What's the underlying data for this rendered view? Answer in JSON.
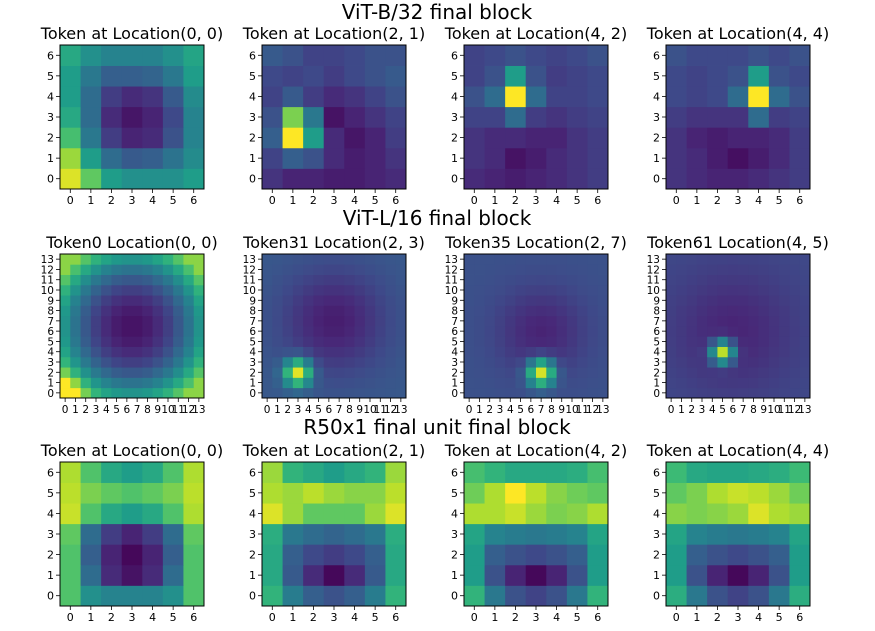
{
  "figure": {
    "rows": [
      {
        "title": "ViT-B/32 final block"
      },
      {
        "title": "ViT-L/16 final block"
      },
      {
        "title": "R50x1 final unit final block"
      }
    ]
  },
  "chart_data": [
    {
      "type": "heatmap",
      "row": 0,
      "col": 0,
      "size": 7,
      "title": "Token at Location(0, 0)",
      "x_ticks": [
        "0",
        "1",
        "2",
        "3",
        "4",
        "5",
        "6"
      ],
      "y_ticks": [
        "0",
        "1",
        "2",
        "3",
        "4",
        "5",
        "6"
      ],
      "cmap": "viridis",
      "value_range": [
        0,
        1
      ],
      "values": [
        [
          0.95,
          0.75,
          0.55,
          0.5,
          0.5,
          0.5,
          0.55
        ],
        [
          0.85,
          0.55,
          0.35,
          0.28,
          0.3,
          0.38,
          0.48
        ],
        [
          0.7,
          0.4,
          0.18,
          0.1,
          0.12,
          0.25,
          0.45
        ],
        [
          0.6,
          0.35,
          0.12,
          0.06,
          0.1,
          0.22,
          0.45
        ],
        [
          0.55,
          0.35,
          0.18,
          0.12,
          0.15,
          0.28,
          0.48
        ],
        [
          0.55,
          0.4,
          0.3,
          0.3,
          0.32,
          0.4,
          0.55
        ],
        [
          0.6,
          0.5,
          0.45,
          0.45,
          0.45,
          0.5,
          0.58
        ]
      ]
    },
    {
      "type": "heatmap",
      "row": 0,
      "col": 1,
      "size": 7,
      "title": "Token at Location(2, 1)",
      "x_ticks": [
        "0",
        "1",
        "2",
        "3",
        "4",
        "5",
        "6"
      ],
      "y_ticks": [
        "0",
        "1",
        "2",
        "3",
        "4",
        "5",
        "6"
      ],
      "cmap": "viridis",
      "value_range": [
        0,
        1
      ],
      "values": [
        [
          0.15,
          0.1,
          0.1,
          0.08,
          0.08,
          0.1,
          0.12
        ],
        [
          0.2,
          0.3,
          0.25,
          0.12,
          0.08,
          0.1,
          0.15
        ],
        [
          0.3,
          1.0,
          0.55,
          0.12,
          0.06,
          0.1,
          0.18
        ],
        [
          0.25,
          0.8,
          0.4,
          0.05,
          0.1,
          0.15,
          0.2
        ],
        [
          0.2,
          0.28,
          0.18,
          0.12,
          0.15,
          0.2,
          0.25
        ],
        [
          0.22,
          0.2,
          0.22,
          0.18,
          0.22,
          0.25,
          0.28
        ],
        [
          0.28,
          0.25,
          0.2,
          0.2,
          0.22,
          0.25,
          0.25
        ]
      ]
    },
    {
      "type": "heatmap",
      "row": 0,
      "col": 2,
      "size": 7,
      "title": "Token at Location(4, 2)",
      "x_ticks": [
        "0",
        "1",
        "2",
        "3",
        "4",
        "5",
        "6"
      ],
      "y_ticks": [
        "0",
        "1",
        "2",
        "3",
        "4",
        "5",
        "6"
      ],
      "cmap": "viridis",
      "value_range": [
        0,
        1
      ],
      "values": [
        [
          0.12,
          0.1,
          0.08,
          0.1,
          0.12,
          0.15,
          0.18
        ],
        [
          0.15,
          0.12,
          0.05,
          0.08,
          0.12,
          0.15,
          0.18
        ],
        [
          0.15,
          0.12,
          0.12,
          0.1,
          0.1,
          0.15,
          0.18
        ],
        [
          0.2,
          0.2,
          0.35,
          0.18,
          0.15,
          0.18,
          0.2
        ],
        [
          0.25,
          0.35,
          1.0,
          0.35,
          0.2,
          0.2,
          0.22
        ],
        [
          0.2,
          0.25,
          0.55,
          0.25,
          0.18,
          0.2,
          0.22
        ],
        [
          0.2,
          0.22,
          0.25,
          0.22,
          0.2,
          0.22,
          0.25
        ]
      ]
    },
    {
      "type": "heatmap",
      "row": 0,
      "col": 3,
      "size": 7,
      "title": "Token at Location(4, 4)",
      "x_ticks": [
        "0",
        "1",
        "2",
        "3",
        "4",
        "5",
        "6"
      ],
      "y_ticks": [
        "0",
        "1",
        "2",
        "3",
        "4",
        "5",
        "6"
      ],
      "cmap": "viridis",
      "value_range": [
        0,
        1
      ],
      "values": [
        [
          0.15,
          0.12,
          0.1,
          0.1,
          0.12,
          0.15,
          0.18
        ],
        [
          0.15,
          0.12,
          0.08,
          0.04,
          0.08,
          0.12,
          0.18
        ],
        [
          0.15,
          0.1,
          0.08,
          0.1,
          0.1,
          0.12,
          0.18
        ],
        [
          0.18,
          0.15,
          0.15,
          0.15,
          0.35,
          0.18,
          0.2
        ],
        [
          0.22,
          0.2,
          0.22,
          0.35,
          1.0,
          0.35,
          0.25
        ],
        [
          0.22,
          0.2,
          0.22,
          0.25,
          0.55,
          0.25,
          0.22
        ],
        [
          0.25,
          0.22,
          0.22,
          0.22,
          0.25,
          0.22,
          0.25
        ]
      ]
    },
    {
      "type": "heatmap",
      "row": 1,
      "col": 0,
      "size": 14,
      "title": "Token0 Location(0, 0)",
      "x_ticks": [
        "0",
        "1",
        "2",
        "3",
        "4",
        "5",
        "6",
        "7",
        "8",
        "9",
        "10",
        "11",
        "12",
        "13"
      ],
      "y_ticks": [
        "0",
        "1",
        "2",
        "3",
        "4",
        "5",
        "6",
        "7",
        "8",
        "9",
        "10",
        "11",
        "12",
        "13"
      ],
      "cmap": "viridis",
      "value_range": [
        0,
        1
      ],
      "generator": {
        "kind": "bowl",
        "center": [
          6.5,
          6.5
        ],
        "scale": 6.5,
        "peak": [
          0,
          0
        ],
        "peak_amplitude": 0.25,
        "peak_width": 1.2
      }
    },
    {
      "type": "heatmap",
      "row": 1,
      "col": 1,
      "size": 14,
      "title": "Token31 Location(2, 3)",
      "x_ticks": [
        "0",
        "1",
        "2",
        "3",
        "4",
        "5",
        "6",
        "7",
        "8",
        "9",
        "10",
        "11",
        "12",
        "13"
      ],
      "y_ticks": [
        "0",
        "1",
        "2",
        "3",
        "4",
        "5",
        "6",
        "7",
        "8",
        "9",
        "10",
        "11",
        "12",
        "13"
      ],
      "cmap": "viridis",
      "value_range": [
        0,
        1
      ],
      "generator": {
        "kind": "blob",
        "peak": [
          3,
          2
        ],
        "peak_width": 1.3,
        "background": 0.28,
        "dark_center": [
          6.5,
          7
        ],
        "dark_radius": 3.5,
        "dark_depth": 0.2
      }
    },
    {
      "type": "heatmap",
      "row": 1,
      "col": 2,
      "size": 14,
      "title": "Token35 Location(2, 7)",
      "x_ticks": [
        "0",
        "1",
        "2",
        "3",
        "4",
        "5",
        "6",
        "7",
        "8",
        "9",
        "10",
        "11",
        "12",
        "13"
      ],
      "y_ticks": [
        "0",
        "1",
        "2",
        "3",
        "4",
        "5",
        "6",
        "7",
        "8",
        "9",
        "10",
        "11",
        "12",
        "13"
      ],
      "cmap": "viridis",
      "value_range": [
        0,
        1
      ],
      "generator": {
        "kind": "blob",
        "peak": [
          7,
          2
        ],
        "peak_width": 1.3,
        "background": 0.25,
        "dark_center": [
          7,
          6
        ],
        "dark_radius": 3,
        "dark_depth": 0.15
      }
    },
    {
      "type": "heatmap",
      "row": 1,
      "col": 3,
      "size": 14,
      "title": "Token61 Location(4, 5)",
      "x_ticks": [
        "0",
        "1",
        "2",
        "3",
        "4",
        "5",
        "6",
        "7",
        "8",
        "9",
        "10",
        "11",
        "12",
        "13"
      ],
      "y_ticks": [
        "0",
        "1",
        "2",
        "3",
        "4",
        "5",
        "6",
        "7",
        "8",
        "9",
        "10",
        "11",
        "12",
        "13"
      ],
      "cmap": "viridis",
      "value_range": [
        0,
        1
      ],
      "generator": {
        "kind": "blob",
        "peak": [
          5,
          4
        ],
        "peak_width": 1.1,
        "background": 0.22,
        "dark_center": [
          6,
          6
        ],
        "dark_radius": 4,
        "dark_depth": 0.12
      }
    },
    {
      "type": "heatmap",
      "row": 2,
      "col": 0,
      "size": 7,
      "title": "Token at Location(0, 0)",
      "x_ticks": [
        "0",
        "1",
        "2",
        "3",
        "4",
        "5",
        "6"
      ],
      "y_ticks": [
        "0",
        "1",
        "2",
        "3",
        "4",
        "5",
        "6"
      ],
      "cmap": "viridis",
      "value_range": [
        0,
        1
      ],
      "values": [
        [
          0.72,
          0.5,
          0.45,
          0.45,
          0.45,
          0.5,
          0.72
        ],
        [
          0.72,
          0.35,
          0.12,
          0.05,
          0.12,
          0.35,
          0.72
        ],
        [
          0.72,
          0.3,
          0.1,
          0.02,
          0.1,
          0.3,
          0.72
        ],
        [
          0.75,
          0.35,
          0.18,
          0.1,
          0.18,
          0.35,
          0.75
        ],
        [
          0.92,
          0.72,
          0.6,
          0.55,
          0.6,
          0.72,
          0.88
        ],
        [
          0.9,
          0.8,
          0.75,
          0.72,
          0.75,
          0.8,
          0.9
        ],
        [
          0.88,
          0.72,
          0.6,
          0.55,
          0.6,
          0.72,
          0.88
        ]
      ]
    },
    {
      "type": "heatmap",
      "row": 2,
      "col": 1,
      "size": 7,
      "title": "Token at Location(2, 1)",
      "x_ticks": [
        "0",
        "1",
        "2",
        "3",
        "4",
        "5",
        "6"
      ],
      "y_ticks": [
        "0",
        "1",
        "2",
        "3",
        "4",
        "5",
        "6"
      ],
      "cmap": "viridis",
      "value_range": [
        0,
        1
      ],
      "values": [
        [
          0.65,
          0.42,
          0.3,
          0.25,
          0.3,
          0.42,
          0.65
        ],
        [
          0.6,
          0.28,
          0.12,
          0.02,
          0.12,
          0.28,
          0.6
        ],
        [
          0.6,
          0.3,
          0.22,
          0.18,
          0.22,
          0.3,
          0.6
        ],
        [
          0.62,
          0.4,
          0.35,
          0.32,
          0.35,
          0.4,
          0.62
        ],
        [
          0.95,
          0.85,
          0.75,
          0.75,
          0.75,
          0.85,
          0.95
        ],
        [
          0.88,
          0.85,
          0.9,
          0.85,
          0.82,
          0.82,
          0.9
        ],
        [
          0.85,
          0.65,
          0.6,
          0.55,
          0.6,
          0.65,
          0.85
        ]
      ]
    },
    {
      "type": "heatmap",
      "row": 2,
      "col": 2,
      "size": 7,
      "title": "Token at Location(4, 2)",
      "x_ticks": [
        "0",
        "1",
        "2",
        "3",
        "4",
        "5",
        "6"
      ],
      "y_ticks": [
        "0",
        "1",
        "2",
        "3",
        "4",
        "5",
        "6"
      ],
      "cmap": "viridis",
      "value_range": [
        0,
        1
      ],
      "values": [
        [
          0.65,
          0.4,
          0.25,
          0.2,
          0.25,
          0.4,
          0.65
        ],
        [
          0.55,
          0.25,
          0.1,
          0.02,
          0.1,
          0.25,
          0.55
        ],
        [
          0.55,
          0.3,
          0.25,
          0.22,
          0.25,
          0.3,
          0.55
        ],
        [
          0.58,
          0.45,
          0.42,
          0.4,
          0.42,
          0.45,
          0.58
        ],
        [
          0.88,
          0.88,
          0.92,
          0.85,
          0.8,
          0.82,
          0.88
        ],
        [
          0.78,
          0.88,
          1.0,
          0.9,
          0.82,
          0.78,
          0.75
        ],
        [
          0.7,
          0.65,
          0.6,
          0.6,
          0.6,
          0.62,
          0.7
        ]
      ]
    },
    {
      "type": "heatmap",
      "row": 2,
      "col": 3,
      "size": 7,
      "title": "Token at Location(4, 4)",
      "x_ticks": [
        "0",
        "1",
        "2",
        "3",
        "4",
        "5",
        "6"
      ],
      "y_ticks": [
        "0",
        "1",
        "2",
        "3",
        "4",
        "5",
        "6"
      ],
      "cmap": "viridis",
      "value_range": [
        0,
        1
      ],
      "values": [
        [
          0.62,
          0.4,
          0.25,
          0.2,
          0.25,
          0.4,
          0.62
        ],
        [
          0.55,
          0.25,
          0.1,
          0.02,
          0.1,
          0.25,
          0.55
        ],
        [
          0.55,
          0.3,
          0.25,
          0.22,
          0.25,
          0.3,
          0.55
        ],
        [
          0.58,
          0.45,
          0.42,
          0.4,
          0.42,
          0.45,
          0.58
        ],
        [
          0.82,
          0.8,
          0.82,
          0.85,
          0.95,
          0.88,
          0.85
        ],
        [
          0.75,
          0.8,
          0.88,
          0.92,
          0.9,
          0.85,
          0.78
        ],
        [
          0.68,
          0.6,
          0.58,
          0.58,
          0.6,
          0.62,
          0.68
        ]
      ]
    }
  ]
}
